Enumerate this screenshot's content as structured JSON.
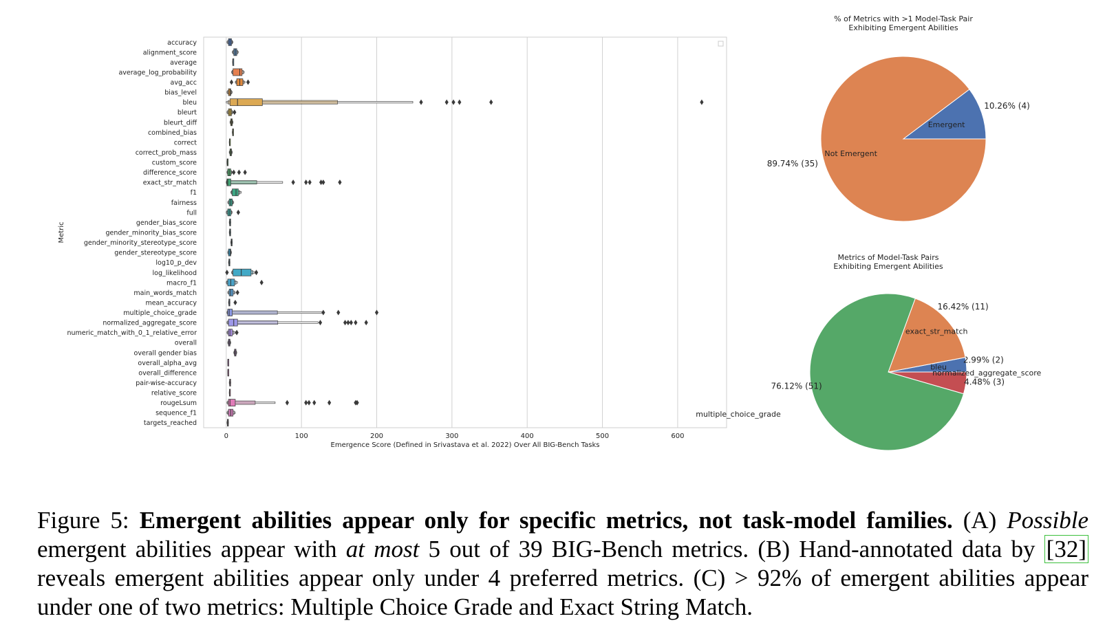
{
  "chart_data": [
    {
      "type": "boxen",
      "xlabel": "Emergence Score (Defined in Srivastava et al. 2022) Over All BIG-Bench Tasks",
      "ylabel": "Metric",
      "xlim": [
        -30,
        665
      ],
      "xticks": [
        0,
        100,
        200,
        300,
        400,
        500,
        600
      ],
      "grid": "vertical",
      "legend": "top-right (empty)",
      "categories": [
        "accuracy",
        "alignment_score",
        "average",
        "average_log_probability",
        "avg_acc",
        "bias_level",
        "bleu",
        "bleurt",
        "bleurt_diff",
        "combined_bias",
        "correct",
        "correct_prob_mass",
        "custom_score",
        "difference_score",
        "exact_str_match",
        "f1",
        "fairness",
        "full",
        "gender_bias_score",
        "gender_minority_bias_score",
        "gender_minority_stereotype_score",
        "gender_stereotype_score",
        "log10_p_dev",
        "log_likelihood",
        "macro_f1",
        "main_words_match",
        "mean_accuracy",
        "multiple_choice_grade",
        "normalized_aggregate_score",
        "numeric_match_with_0_1_relative_error",
        "overall",
        "overall gender bias",
        "overall_alpha_avg",
        "overall_difference",
        "pair-wise-accuracy",
        "relative_score",
        "rougeLsum",
        "sequence_f1",
        "targets_reached"
      ],
      "colors": [
        "#4c72b0",
        "#557fa8",
        "#5c89a6",
        "#e58050",
        "#e08a3f",
        "#c98b3e",
        "#dca954",
        "#bda045",
        "#a8a644",
        "#90a345",
        "#7fa346",
        "#66a64e",
        "#5aa45a",
        "#4ea66a",
        "#43a576",
        "#3ea784",
        "#3aa790",
        "#39a59c",
        "#38a3a7",
        "#39a0b0",
        "#3a9cb8",
        "#3c98bf",
        "#3f93c4",
        "#43a9c6",
        "#4aa3c8",
        "#5b9fd0",
        "#6f9ade",
        "#8b98e4",
        "#9e98e8",
        "#ad92e6",
        "#bb8ee0",
        "#c68bd8",
        "#ce89ce",
        "#d588c2",
        "#d987b5",
        "#dd86a8",
        "#e07cb8",
        "#cb7ab4",
        "#b47aae"
      ],
      "boxes": [
        {
          "min": 1,
          "q1": 3,
          "median": 5,
          "q3": 7,
          "max": 9,
          "outliers": []
        },
        {
          "min": 8,
          "q1": 10,
          "median": 12,
          "q3": 14,
          "max": 16,
          "outliers": []
        },
        {
          "min": 8.5,
          "q1": 8.7,
          "median": 8.8,
          "q3": 9,
          "max": 9.2,
          "outliers": []
        },
        {
          "min": 7,
          "q1": 9,
          "median": 18,
          "q3": 21,
          "max": 24,
          "outliers": []
        },
        {
          "min": 12,
          "q1": 14,
          "median": 18,
          "q3": 22,
          "max": 25,
          "outliers": [
            7,
            29
          ]
        },
        {
          "min": 1,
          "q1": 3,
          "median": 5,
          "q3": 6,
          "max": 8,
          "outliers": []
        },
        {
          "min": 0,
          "q1": 5,
          "median": 15,
          "q3": 48,
          "max": 248,
          "outliers": [
            259,
            293,
            302,
            310,
            352,
            632
          ]
        },
        {
          "min": 1,
          "q1": 3,
          "median": 5,
          "q3": 7,
          "max": 9,
          "outliers": [
            11
          ]
        },
        {
          "min": 5,
          "q1": 6,
          "median": 7,
          "q3": 8,
          "max": 9,
          "outliers": []
        },
        {
          "min": 8,
          "q1": 8.4,
          "median": 8.7,
          "q3": 9,
          "max": 9.4,
          "outliers": []
        },
        {
          "min": 4,
          "q1": 4.2,
          "median": 4.4,
          "q3": 4.6,
          "max": 4.8,
          "outliers": []
        },
        {
          "min": 4,
          "q1": 5,
          "median": 6,
          "q3": 7,
          "max": 8,
          "outliers": []
        },
        {
          "min": 1,
          "q1": 1.2,
          "median": 1.5,
          "q3": 1.7,
          "max": 2,
          "outliers": []
        },
        {
          "min": 1,
          "q1": 2,
          "median": 4,
          "q3": 6,
          "max": 8,
          "outliers": [
            10,
            17,
            25
          ]
        },
        {
          "min": 0,
          "q1": 1,
          "median": 2,
          "q3": 6,
          "max": 75,
          "outliers": [
            89,
            106,
            111,
            126,
            129,
            151
          ]
        },
        {
          "min": 6,
          "q1": 8,
          "median": 13,
          "q3": 16,
          "max": 20,
          "outliers": []
        },
        {
          "min": 2,
          "q1": 4,
          "median": 6,
          "q3": 8,
          "max": 10,
          "outliers": []
        },
        {
          "min": 0,
          "q1": 2,
          "median": 4,
          "q3": 6,
          "max": 8,
          "outliers": [
            16
          ]
        },
        {
          "min": 4,
          "q1": 4.5,
          "median": 5,
          "q3": 5.5,
          "max": 6,
          "outliers": []
        },
        {
          "min": 4,
          "q1": 4.5,
          "median": 5,
          "q3": 5.5,
          "max": 6,
          "outliers": []
        },
        {
          "min": 6,
          "q1": 6.5,
          "median": 7,
          "q3": 7.5,
          "max": 8,
          "outliers": []
        },
        {
          "min": 2,
          "q1": 3,
          "median": 5,
          "q3": 6,
          "max": 7,
          "outliers": []
        },
        {
          "min": 3,
          "q1": 3.5,
          "median": 4,
          "q3": 4.5,
          "max": 5,
          "outliers": []
        },
        {
          "min": 7,
          "q1": 9,
          "median": 20,
          "q3": 33,
          "max": 38,
          "outliers": [
            1,
            40
          ]
        },
        {
          "min": 0,
          "q1": 2,
          "median": 6,
          "q3": 11,
          "max": 15,
          "outliers": [
            47
          ]
        },
        {
          "min": 2,
          "q1": 4,
          "median": 6,
          "q3": 9,
          "max": 12,
          "outliers": [
            15
          ]
        },
        {
          "min": 3,
          "q1": 3.5,
          "median": 4,
          "q3": 4.5,
          "max": 5,
          "outliers": [
            12
          ]
        },
        {
          "min": 1,
          "q1": 2,
          "median": 4,
          "q3": 8,
          "max": 128,
          "outliers": [
            129,
            149,
            200
          ]
        },
        {
          "min": 1,
          "q1": 3,
          "median": 10,
          "q3": 15,
          "max": 122,
          "outliers": [
            125,
            158,
            162,
            166,
            172,
            186
          ]
        },
        {
          "min": 1,
          "q1": 3,
          "median": 5,
          "q3": 8,
          "max": 12,
          "outliers": [
            14
          ]
        },
        {
          "min": 2,
          "q1": 3,
          "median": 4,
          "q3": 5,
          "max": 6,
          "outliers": []
        },
        {
          "min": 10,
          "q1": 11,
          "median": 12,
          "q3": 13,
          "max": 14,
          "outliers": []
        },
        {
          "min": 2,
          "q1": 2.1,
          "median": 2.2,
          "q3": 2.3,
          "max": 2.4,
          "outliers": []
        },
        {
          "min": 2,
          "q1": 2.1,
          "median": 2.2,
          "q3": 2.3,
          "max": 2.4,
          "outliers": []
        },
        {
          "min": 4,
          "q1": 4.5,
          "median": 5,
          "q3": 5.5,
          "max": 6,
          "outliers": []
        },
        {
          "min": 4,
          "q1": 4.2,
          "median": 4.5,
          "q3": 4.8,
          "max": 5,
          "outliers": []
        },
        {
          "min": 1,
          "q1": 3,
          "median": 5,
          "q3": 12,
          "max": 65,
          "outliers": [
            81,
            106,
            110,
            117,
            137,
            172,
            174
          ]
        },
        {
          "min": 1,
          "q1": 3,
          "median": 6,
          "q3": 9,
          "max": 12,
          "outliers": []
        },
        {
          "min": 1,
          "q1": 1.5,
          "median": 2,
          "q3": 2.5,
          "max": 3,
          "outliers": []
        }
      ]
    },
    {
      "type": "pie",
      "title": "% of Metrics with >1 Model-Task Pair\nExhibiting Emergent Abilities",
      "slices": [
        {
          "label": "Emergent",
          "value": 4,
          "pct_label": "10.26%  (4)",
          "color": "#4c72b0"
        },
        {
          "label": "Not Emergent",
          "value": 35,
          "pct_label": "89.74%  (35)",
          "color": "#dd8452"
        }
      ]
    },
    {
      "type": "pie",
      "title": "Metrics of Model-Task Pairs\nExhibiting Emergent Abilities",
      "slices": [
        {
          "label": "bleu",
          "value": 2,
          "pct_label": "2.99%  (2)",
          "color": "#4c72b0"
        },
        {
          "label": "exact_str_match",
          "value": 11,
          "pct_label": "16.42%  (11)",
          "color": "#dd8452"
        },
        {
          "label": "multiple_choice_grade",
          "value": 51,
          "pct_label": "76.12%  (51)",
          "color": "#55a868"
        },
        {
          "label": "normalized_aggregate_score",
          "value": 3,
          "pct_label": "4.48%  (3)",
          "color": "#c44e52"
        }
      ]
    }
  ],
  "caption": {
    "prefix": "Figure 5: ",
    "bold": "Emergent abilities appear only for specific metrics, not task-model families.",
    "p1": " (A) ",
    "italic1": "Possible",
    "p2": " emergent abilities appear with ",
    "italic2": "at most",
    "p3": " 5 out of 39 BIG-Bench metrics. (B) Hand-annotated data by ",
    "cite": "[32]",
    "p4": " reveals emergent abilities appear only under 4 preferred metrics. (C) > 92% of emergent abilities appear under one of two metrics: Multiple Choice Grade and Exact String Match."
  }
}
